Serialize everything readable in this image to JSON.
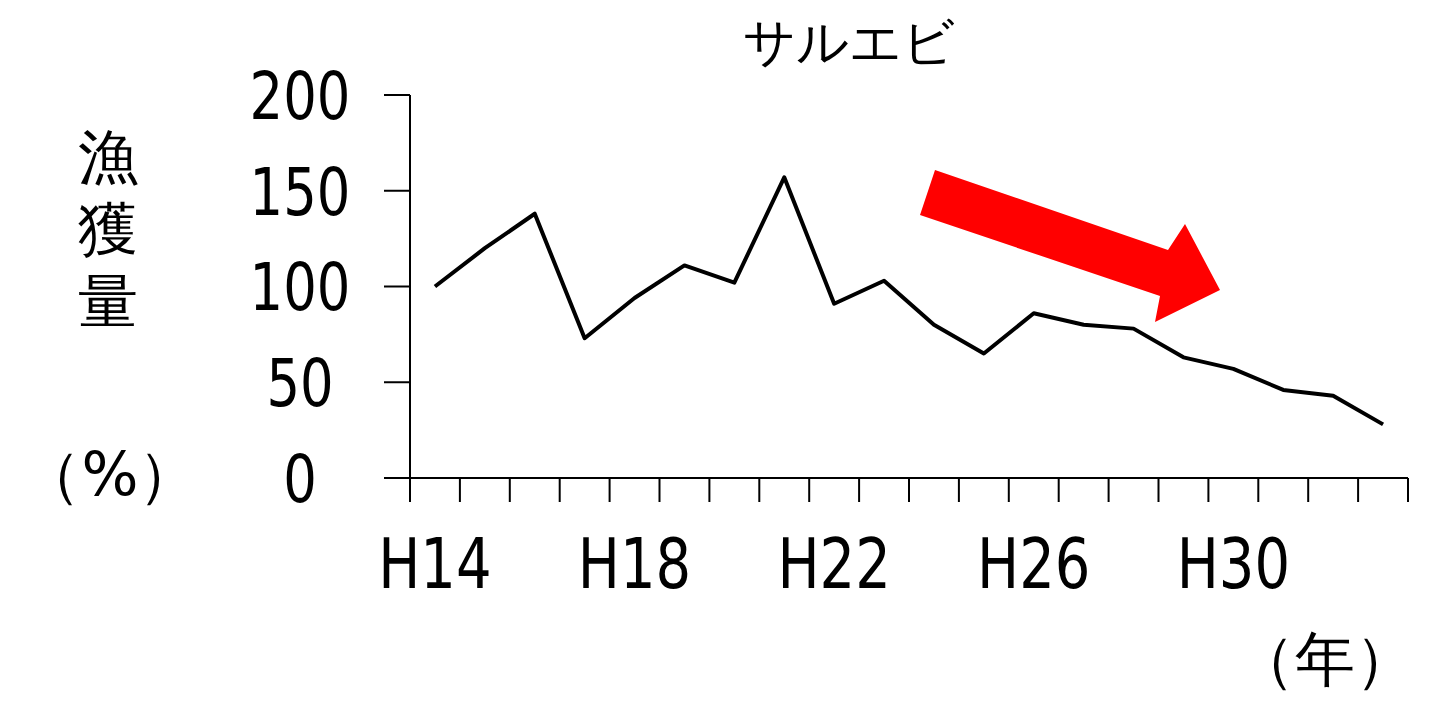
{
  "chart_data": {
    "type": "line",
    "title": "サルエビ",
    "ylabel": "漁獲量",
    "annotations": [
      "（%）"
    ],
    "xlabel": "（年）",
    "categories": [
      "H14",
      null,
      null,
      null,
      "H18",
      null,
      null,
      null,
      "H22",
      null,
      null,
      null,
      "H26",
      null,
      null,
      null,
      "H30",
      null,
      null,
      null
    ],
    "series": [
      {
        "color": "#000000",
        "values": [
          100,
          120,
          138,
          73,
          94,
          111,
          102,
          157,
          91,
          103,
          80,
          65,
          86,
          80,
          78,
          63,
          57,
          46,
          43,
          28
        ]
      }
    ],
    "ylim": [
      0,
      200
    ],
    "yticks": [
      0,
      50,
      100,
      150,
      200
    ],
    "grid": false,
    "marker": "none",
    "line_style": "solid"
  }
}
